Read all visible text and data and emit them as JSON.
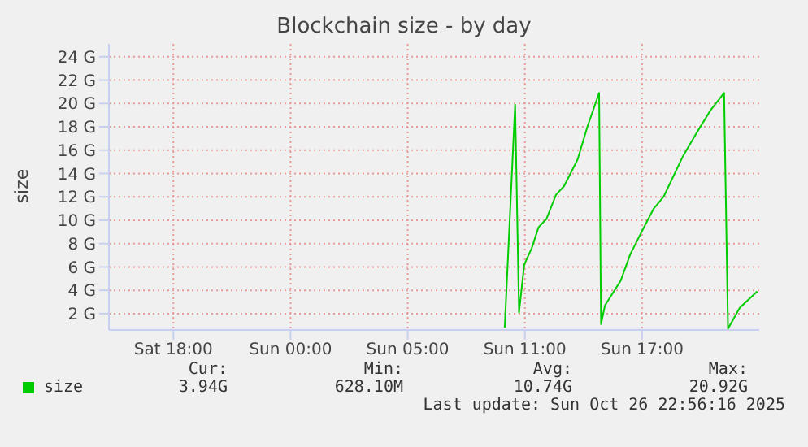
{
  "chart_data": {
    "type": "line",
    "title": "Blockchain size - by day",
    "ylabel": "size",
    "x": [
      "2025-10-26T08:58",
      "2025-10-26T09:30",
      "2025-10-26T09:42",
      "2025-10-26T09:58",
      "2025-10-26T10:21",
      "2025-10-26T10:42",
      "2025-10-26T11:06",
      "2025-10-26T11:36",
      "2025-10-26T12:00",
      "2025-10-26T12:42",
      "2025-10-26T13:12",
      "2025-10-26T13:48",
      "2025-10-26T13:54",
      "2025-10-26T14:06",
      "2025-10-26T14:54",
      "2025-10-26T15:24",
      "2025-10-26T16:06",
      "2025-10-26T16:36",
      "2025-10-26T17:06",
      "2025-10-26T18:06",
      "2025-10-26T18:48",
      "2025-10-26T19:30",
      "2025-10-26T20:12",
      "2025-10-26T20:24",
      "2025-10-26T21:00",
      "2025-10-26T21:54"
    ],
    "series": [
      {
        "name": "size",
        "color": "#00cc00",
        "values": [
          0.8,
          19.9,
          2.1,
          6.2,
          7.6,
          9.4,
          10.1,
          12.2,
          12.9,
          15.2,
          18.0,
          20.9,
          1.1,
          2.7,
          4.8,
          7.1,
          9.4,
          11.0,
          12.0,
          15.5,
          17.5,
          19.4,
          20.9,
          0.7,
          2.5,
          3.9
        ]
      }
    ],
    "xlim": [
      "2025-10-25T12:42",
      "2025-10-26T22:00"
    ],
    "xticks": [
      {
        "value": "2025-10-25T16:00",
        "label": "Sat 18:00"
      },
      {
        "value": "2025-10-25T22:00",
        "label": "Sun 00:00"
      },
      {
        "value": "2025-10-26T04:00",
        "label": "Sun 05:00"
      },
      {
        "value": "2025-10-26T10:00",
        "label": "Sun 11:00"
      },
      {
        "value": "2025-10-26T16:00",
        "label": "Sun 17:00"
      }
    ],
    "ylim": [
      0.6,
      25.1
    ],
    "yticks": [
      {
        "value": 2,
        "label": "2 G"
      },
      {
        "value": 4,
        "label": "4 G"
      },
      {
        "value": 6,
        "label": "6 G"
      },
      {
        "value": 8,
        "label": "8 G"
      },
      {
        "value": 10,
        "label": "10 G"
      },
      {
        "value": 12,
        "label": "12 G"
      },
      {
        "value": 14,
        "label": "14 G"
      },
      {
        "value": 16,
        "label": "16 G"
      },
      {
        "value": 18,
        "label": "18 G"
      },
      {
        "value": 20,
        "label": "20 G"
      },
      {
        "value": 22,
        "label": "22 G"
      },
      {
        "value": 24,
        "label": "24 G"
      }
    ],
    "grid": true,
    "legend": "bottom left",
    "marker": "none",
    "line_style": "solid",
    "annotations": [
      "Cur:",
      "3.94G",
      "Min:",
      "628.10M",
      "Avg:",
      "10.74G",
      "Max:",
      "20.92G",
      "Last update: Sun Oct 26 22:56:16 2025"
    ]
  }
}
